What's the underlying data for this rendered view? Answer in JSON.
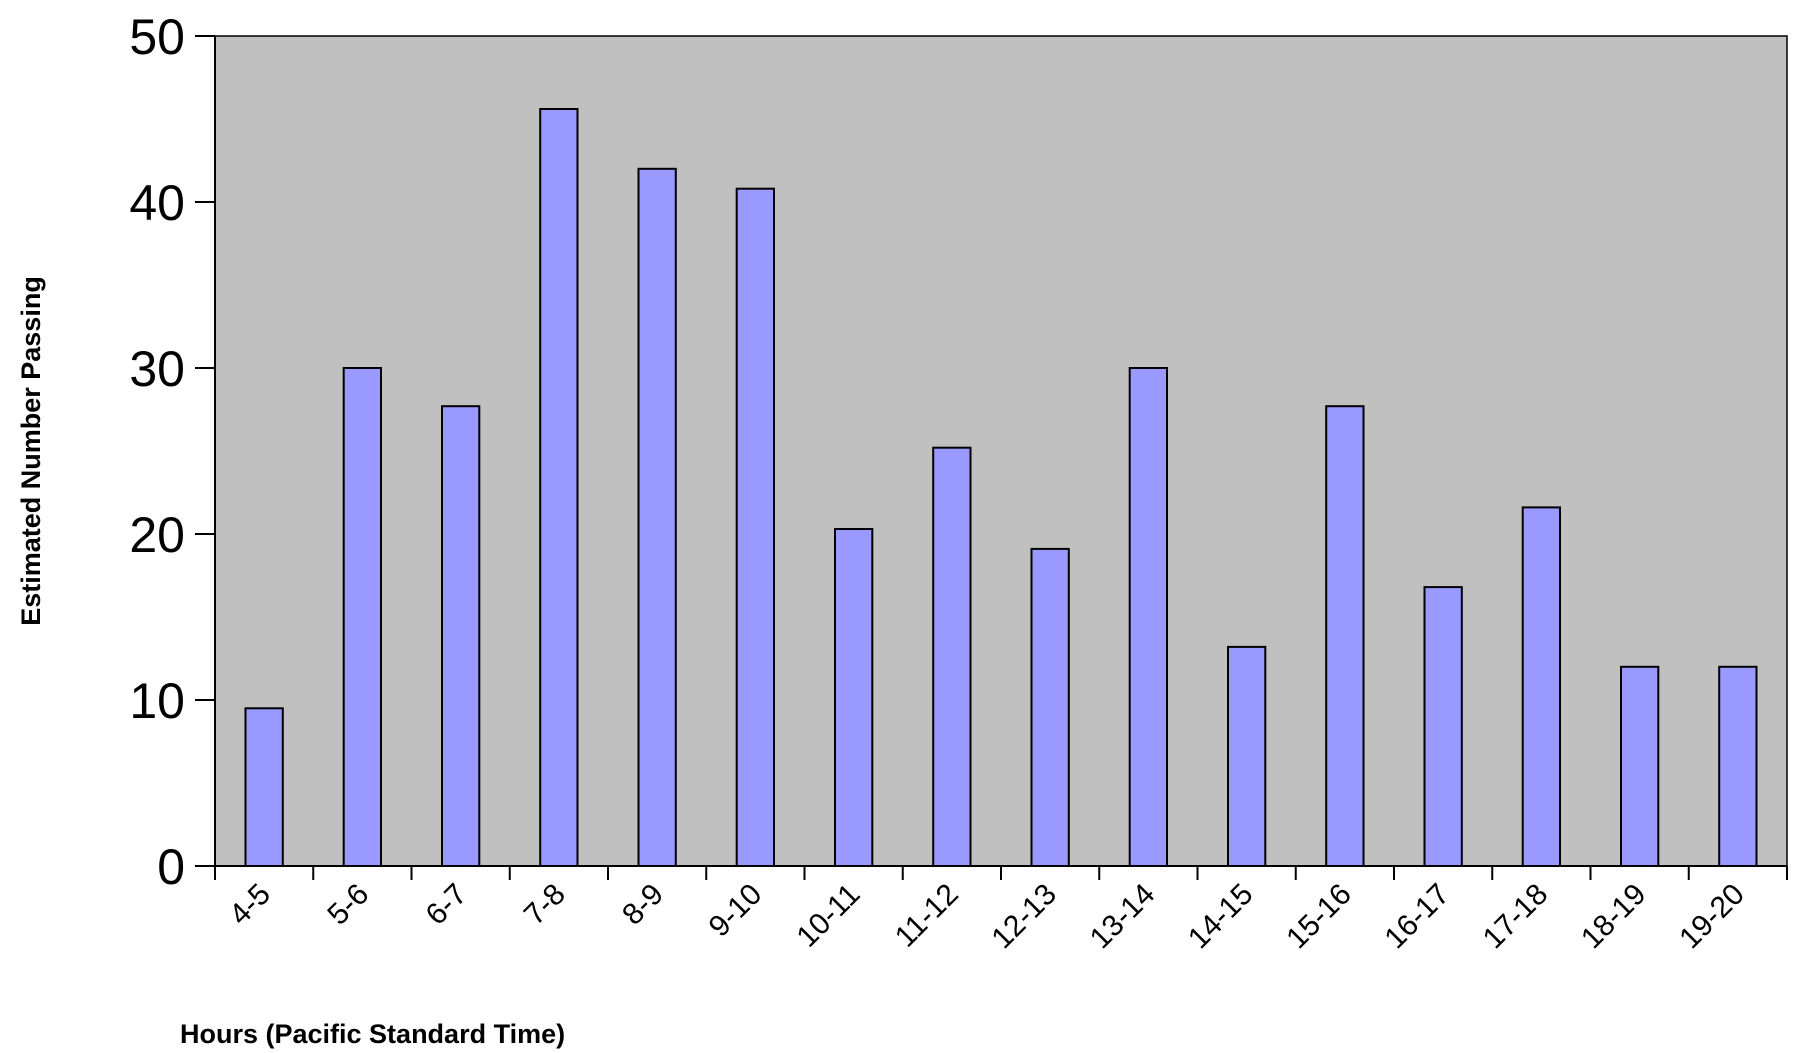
{
  "chart_data": {
    "type": "bar",
    "title": "",
    "xlabel": "Hours (Pacific Standard Time)",
    "ylabel": "Estimated Number Passing",
    "ylim": [
      0,
      50
    ],
    "yticks": [
      0,
      10,
      20,
      30,
      40,
      50
    ],
    "grid": false,
    "legend": "none",
    "categories": [
      "4-5",
      "5-6",
      "6-7",
      "7-8",
      "8-9",
      "9-10",
      "10-11",
      "11-12",
      "12-13",
      "13-14",
      "14-15",
      "15-16",
      "16-17",
      "17-18",
      "18-19",
      "19-20"
    ],
    "values": [
      9.5,
      30,
      27.7,
      45.6,
      42,
      40.8,
      20.3,
      25.2,
      19.1,
      30,
      13.2,
      27.7,
      16.8,
      21.6,
      12,
      12
    ],
    "colors": {
      "plot_background": "#c0c0c0",
      "bar_fill": "#9999ff",
      "bar_stroke": "#000000",
      "axis": "#000000"
    }
  }
}
